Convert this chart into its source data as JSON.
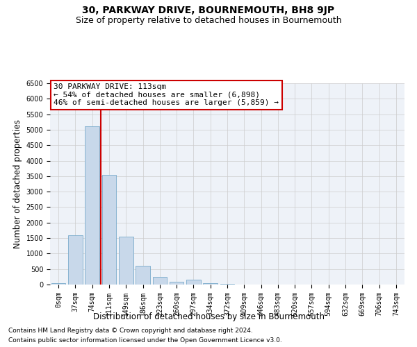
{
  "title": "30, PARKWAY DRIVE, BOURNEMOUTH, BH8 9JP",
  "subtitle": "Size of property relative to detached houses in Bournemouth",
  "xlabel": "Distribution of detached houses by size in Bournemouth",
  "ylabel": "Number of detached properties",
  "footer1": "Contains HM Land Registry data © Crown copyright and database right 2024.",
  "footer2": "Contains public sector information licensed under the Open Government Licence v3.0.",
  "annotation_title": "30 PARKWAY DRIVE: 113sqm",
  "annotation_line1": "← 54% of detached houses are smaller (6,898)",
  "annotation_line2": "46% of semi-detached houses are larger (5,859) →",
  "categories": [
    "0sqm",
    "37sqm",
    "74sqm",
    "111sqm",
    "149sqm",
    "186sqm",
    "223sqm",
    "260sqm",
    "297sqm",
    "334sqm",
    "372sqm",
    "409sqm",
    "446sqm",
    "483sqm",
    "520sqm",
    "557sqm",
    "594sqm",
    "632sqm",
    "669sqm",
    "706sqm",
    "743sqm"
  ],
  "values": [
    50,
    1600,
    5100,
    3550,
    1550,
    600,
    250,
    100,
    150,
    50,
    30,
    10,
    5,
    3,
    2,
    1,
    1,
    0,
    0,
    0,
    0
  ],
  "bar_color": "#c8d8ea",
  "bar_edge_color": "#7aabcc",
  "vline_color": "#cc0000",
  "vline_x_idx": 2.5,
  "ylim": [
    0,
    6500
  ],
  "yticks": [
    0,
    500,
    1000,
    1500,
    2000,
    2500,
    3000,
    3500,
    4000,
    4500,
    5000,
    5500,
    6000,
    6500
  ],
  "grid_color": "#cccccc",
  "bg_color": "#eef2f8",
  "annotation_box_color": "#ffffff",
  "annotation_box_edge": "#cc0000",
  "title_fontsize": 10,
  "subtitle_fontsize": 9,
  "axis_label_fontsize": 8.5,
  "tick_fontsize": 7,
  "annotation_fontsize": 8,
  "footer_fontsize": 6.5
}
